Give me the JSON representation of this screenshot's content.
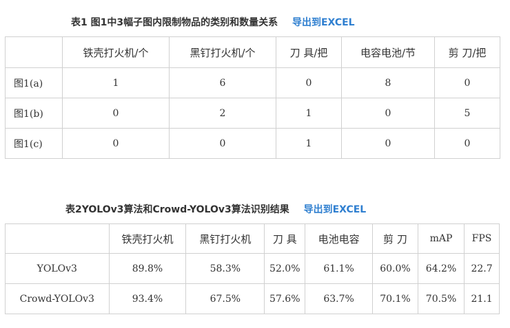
{
  "table1": {
    "title": "表1  图1中3幅子图内限制物品的类别和数量关系",
    "export_label": "导出到EXCEL",
    "headers": [
      "",
      "铁壳打火机/个",
      "黑钉打火机/个",
      "刀 具/把",
      "电容电池/节",
      "剪 刀/把"
    ],
    "rows": [
      [
        "图1(a)",
        "1",
        "6",
        "0",
        "8",
        "0"
      ],
      [
        "图1(b)",
        "0",
        "2",
        "1",
        "0",
        "5"
      ],
      [
        "图1(c)",
        "0",
        "0",
        "1",
        "0",
        "0"
      ]
    ]
  },
  "table2": {
    "title": "表2YOLOv3算法和Crowd-YOLOv3算法识别结果",
    "export_label": "导出到EXCEL",
    "headers": [
      "",
      "铁壳打火机",
      "黑钉打火机",
      "刀 具",
      "电池电容",
      "剪 刀",
      "mAP",
      "FPS"
    ],
    "rows": [
      [
        "YOLOv3",
        "89.8%",
        "58.3%",
        "52.0%",
        "61.1%",
        "60.0%",
        "64.2%",
        "22.7"
      ],
      [
        "Crowd-YOLOv3",
        "93.4%",
        "67.5%",
        "57.6%",
        "63.7%",
        "70.1%",
        "70.5%",
        "21.1"
      ]
    ]
  }
}
